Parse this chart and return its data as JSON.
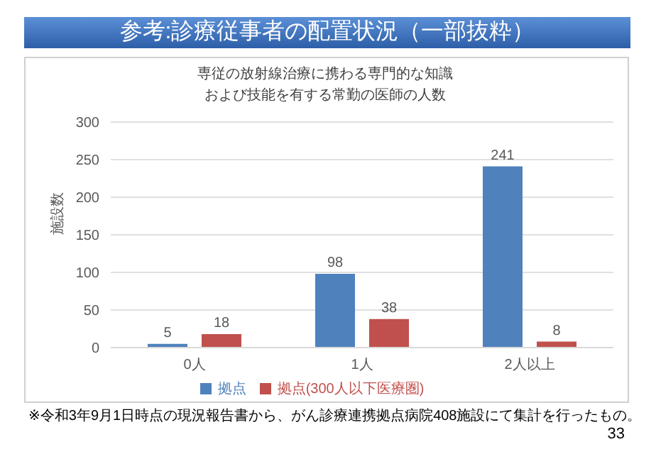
{
  "chart_data": {
    "type": "bar",
    "title": "参考:診療従事者の配置状況（一部抜粋）",
    "subtitle": "専従の放射線治療に携わる専門的な知識および技能を有する常勤の医師の人数",
    "ylabel": "施設数",
    "categories": [
      "0人",
      "1人",
      "2人以上"
    ],
    "series": [
      {
        "name": "拠点",
        "color": "#4f81bd",
        "values": [
          5,
          98,
          241
        ]
      },
      {
        "name": "拠点(300人以下医療圏)",
        "color": "#c0504d",
        "values": [
          18,
          38,
          8
        ]
      }
    ],
    "ylim": [
      0,
      300
    ],
    "yticks": [
      0,
      50,
      100,
      150,
      200,
      250,
      300
    ],
    "grid": "y",
    "legend": "bottom",
    "data_labels": true,
    "annotations": [
      "※令和3年9月1日時点の現況報告書から、がん診療連携拠点病院408施設にて集計を行ったもの。",
      "33"
    ]
  }
}
